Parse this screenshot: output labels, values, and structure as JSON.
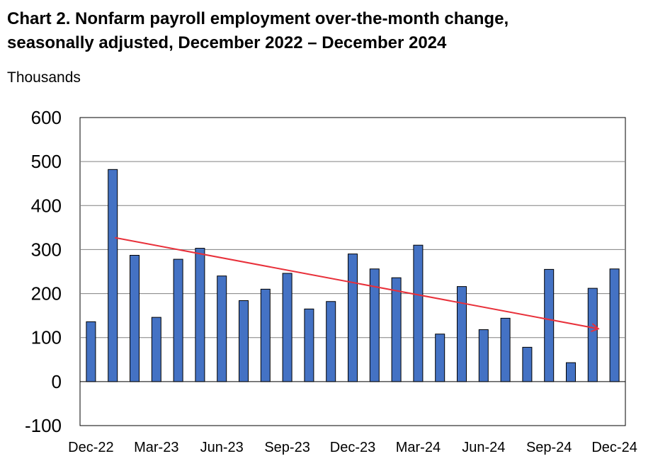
{
  "chart_data": {
    "type": "bar",
    "title_line1": "Chart 2. Nonfarm payroll employment over-the-month change,",
    "title_line2": "seasonally adjusted, December 2022 – December 2024",
    "ylabel": "Thousands",
    "xlabel": "",
    "ylim": [
      -100,
      600
    ],
    "yticks": [
      -100,
      0,
      100,
      200,
      300,
      400,
      500,
      600
    ],
    "grid": true,
    "categories": [
      "Dec-22",
      "Jan-23",
      "Feb-23",
      "Mar-23",
      "Apr-23",
      "May-23",
      "Jun-23",
      "Jul-23",
      "Aug-23",
      "Sep-23",
      "Oct-23",
      "Nov-23",
      "Dec-23",
      "Jan-24",
      "Feb-24",
      "Mar-24",
      "Apr-24",
      "May-24",
      "Jun-24",
      "Jul-24",
      "Aug-24",
      "Sep-24",
      "Oct-24",
      "Nov-24",
      "Dec-24"
    ],
    "tick_labels": [
      "Dec-22",
      "Mar-23",
      "Jun-23",
      "Sep-23",
      "Dec-23",
      "Mar-24",
      "Jun-24",
      "Sep-24",
      "Dec-24"
    ],
    "values": [
      136,
      482,
      287,
      146,
      278,
      303,
      240,
      184,
      210,
      246,
      165,
      182,
      290,
      256,
      236,
      310,
      108,
      216,
      118,
      144,
      78,
      255,
      43,
      212,
      256
    ],
    "trend_line": {
      "start": {
        "x": "Jan-23",
        "y": 327
      },
      "end": {
        "x": "Nov-24",
        "y": 120
      }
    },
    "colors": {
      "bar": "#4472C4",
      "bar_edge": "#000000",
      "trend": "#E8303A",
      "grid": "#808080"
    }
  }
}
